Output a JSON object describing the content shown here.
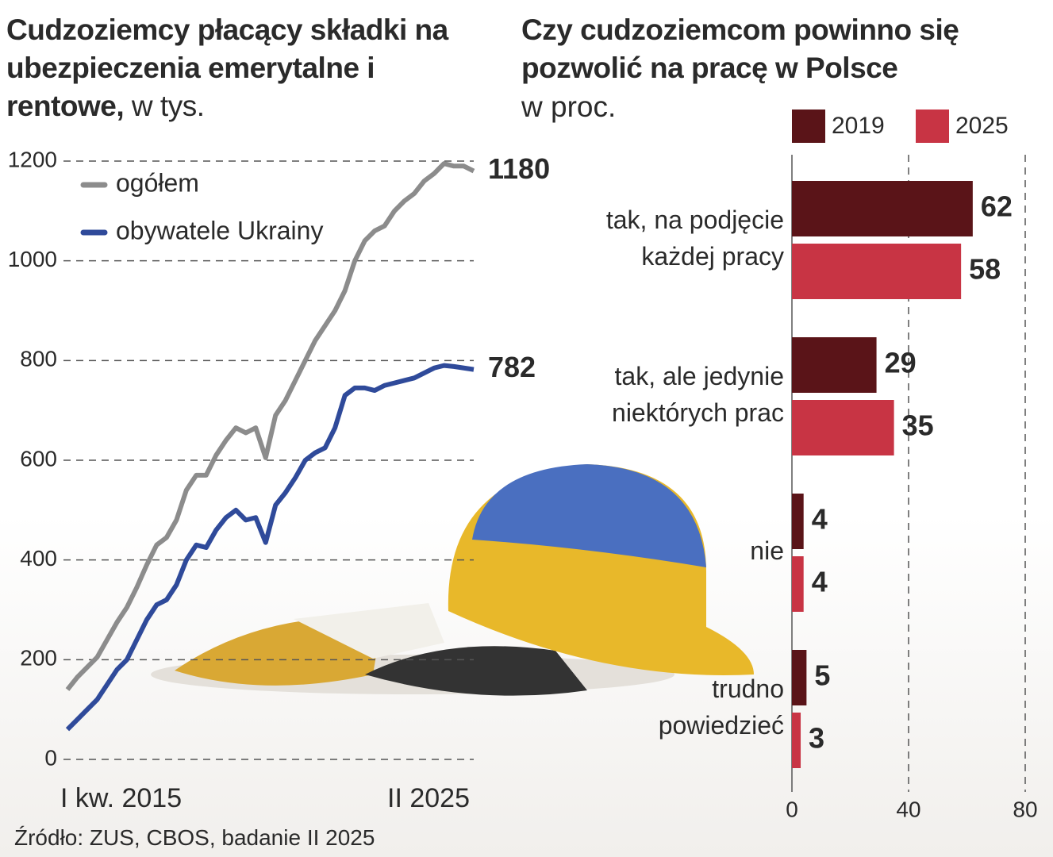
{
  "chart_data": [
    {
      "type": "line",
      "title": "Cudzoziemcy płacący składki na ubezpieczenia emerytalne i rentowe,",
      "unit": "w tys.",
      "categories": [
        "I kw. 2015",
        null,
        null,
        null,
        null,
        null,
        null,
        null,
        null,
        null,
        null,
        null,
        null,
        null,
        null,
        null,
        null,
        null,
        null,
        null,
        null,
        null,
        null,
        null,
        null,
        null,
        null,
        null,
        null,
        null,
        null,
        null,
        null,
        null,
        null,
        null,
        null,
        null,
        null,
        null,
        null,
        "II 2025"
      ],
      "series": [
        {
          "name": "ogółem",
          "color": "#8c8c8c",
          "values": [
            140,
            165,
            185,
            205,
            240,
            275,
            305,
            345,
            390,
            430,
            445,
            480,
            540,
            570,
            570,
            610,
            640,
            665,
            655,
            665,
            605,
            690,
            720,
            760,
            800,
            840,
            870,
            900,
            940,
            1000,
            1040,
            1060,
            1070,
            1100,
            1120,
            1135,
            1160,
            1175,
            1195,
            1190,
            1190,
            1180
          ]
        },
        {
          "name": "obywatele Ukrainy",
          "color": "#2f4a9a",
          "values": [
            60,
            80,
            100,
            120,
            150,
            180,
            200,
            240,
            280,
            310,
            320,
            350,
            400,
            430,
            425,
            460,
            485,
            500,
            480,
            485,
            435,
            510,
            535,
            565,
            600,
            615,
            625,
            665,
            730,
            745,
            745,
            740,
            750,
            755,
            760,
            765,
            775,
            785,
            790,
            788,
            785,
            782
          ]
        }
      ],
      "ylim": [
        0,
        1200
      ],
      "yticks": [
        0,
        200,
        400,
        600,
        800,
        1000,
        1200
      ],
      "grid": true
    },
    {
      "type": "bar",
      "orientation": "horizontal",
      "title": "Czy cudzoziemcom powinno się pozwolić na pracę w Polsce",
      "subtitle": "w proc.",
      "categories": [
        [
          "tak, na podjęcie",
          "każdej pracy"
        ],
        [
          "tak, ale jedynie",
          "niektórych prac"
        ],
        [
          "nie"
        ],
        [
          "trudno",
          "powiedzieć"
        ]
      ],
      "series": [
        {
          "name": "2019",
          "color": "#5a1418",
          "values": [
            62,
            29,
            4,
            5
          ]
        },
        {
          "name": "2025",
          "color": "#c83444",
          "values": [
            58,
            35,
            4,
            3
          ]
        }
      ],
      "xlim": [
        0,
        80
      ],
      "xticks": [
        0,
        40,
        80
      ],
      "grid": true,
      "legend": "top"
    }
  ],
  "source": "Źródło: ZUS, CBOS, badanie II 2025"
}
